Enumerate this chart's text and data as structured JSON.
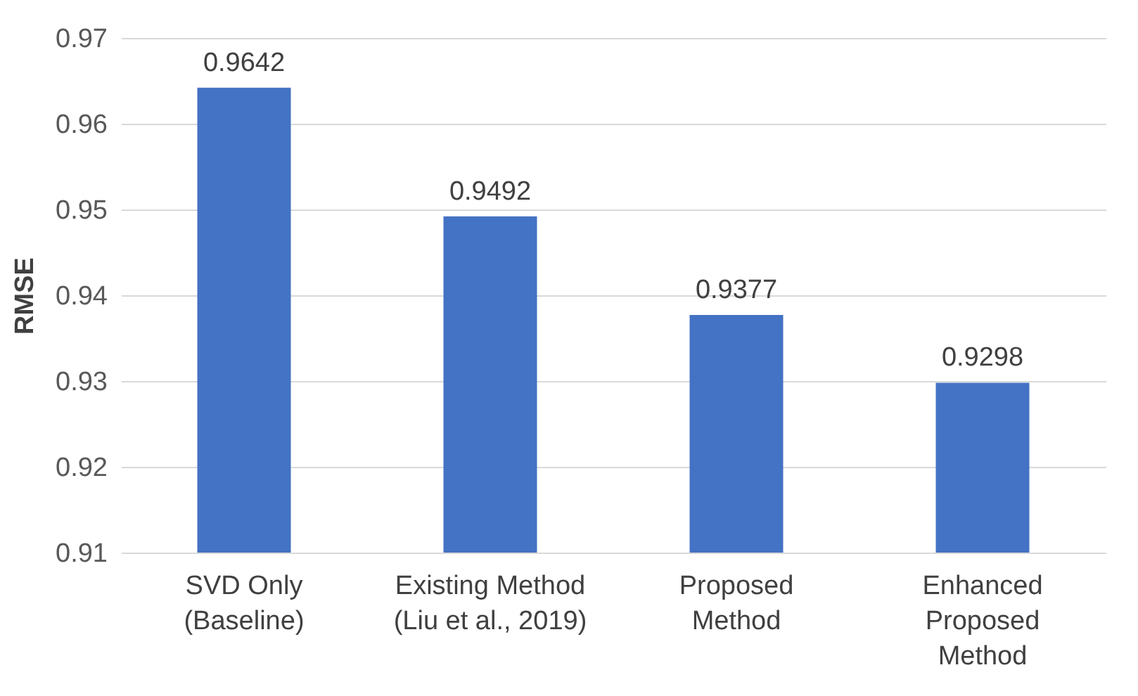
{
  "chart_data": {
    "type": "bar",
    "ylabel": "RMSE",
    "categories": [
      "SVD Only\n(Baseline)",
      "Existing Method\n(Liu et al., 2019)",
      "Proposed\nMethod",
      "Enhanced\nProposed\nMethod"
    ],
    "values": [
      0.9642,
      0.9492,
      0.9377,
      0.9298
    ],
    "color": "#4472c4",
    "ylim": [
      0.91,
      0.97
    ],
    "yticks": [
      0.91,
      0.92,
      0.93,
      0.94,
      0.95,
      0.96,
      0.97
    ],
    "grid": "y",
    "data_labels": true
  }
}
